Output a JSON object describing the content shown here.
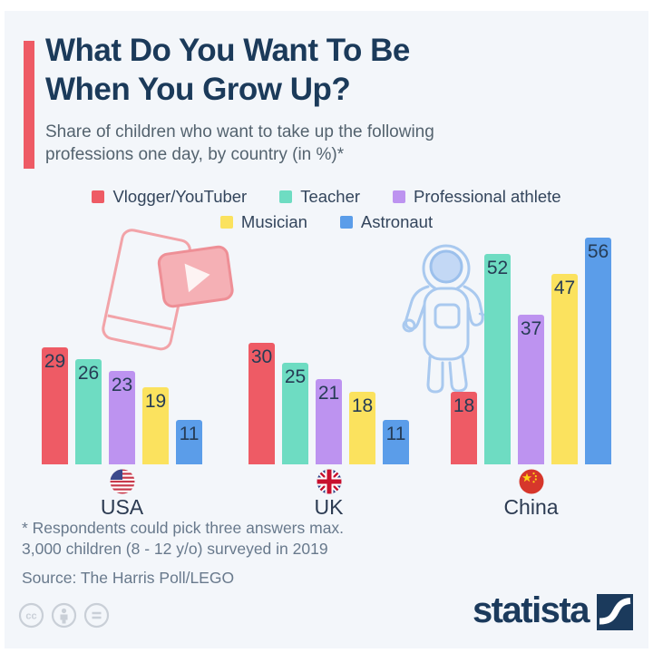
{
  "header": {
    "title_line1": "What Do You Want To Be",
    "title_line2": "When You Grow Up?",
    "subtitle": "Share of children who want to take up the following professions one day, by country (in %)*"
  },
  "chart_data": {
    "type": "bar",
    "categories": [
      "USA",
      "UK",
      "China"
    ],
    "series": [
      {
        "name": "Vlogger/YouTuber",
        "color": "#ee5b65",
        "values": [
          29,
          30,
          18
        ]
      },
      {
        "name": "Teacher",
        "color": "#6edcc2",
        "values": [
          26,
          25,
          52
        ]
      },
      {
        "name": "Professional athlete",
        "color": "#bd93f0",
        "values": [
          23,
          21,
          37
        ]
      },
      {
        "name": "Musician",
        "color": "#fbe25e",
        "values": [
          19,
          18,
          47
        ]
      },
      {
        "name": "Astronaut",
        "color": "#5b9de9",
        "values": [
          11,
          11,
          56
        ]
      }
    ],
    "unit": "%",
    "value_labels": true,
    "ylim": [
      0,
      60
    ],
    "grid": false,
    "legend_position": "top",
    "axis_labels_shown": false
  },
  "footnote": {
    "line1": "* Respondents could pick three answers max.",
    "line2": "3,000 children (8 - 12 y/o) surveyed in 2019",
    "source": "Source: The Harris Poll/LEGO"
  },
  "branding": {
    "logo_text": "statista"
  },
  "icons": {
    "youtube-phone-doodle": "smartphone with video play button",
    "astronaut-doodle": "astronaut outline",
    "usa-flag": "round US flag",
    "uk-flag": "round UK flag",
    "china-flag": "round China flag",
    "cc-icon": "cc",
    "attribution-person-icon": "person",
    "no-derivatives-icon": "=",
    "statista-mark": "white swoosh on navy square"
  },
  "colors": {
    "background": "#f3f6fa",
    "title": "#1b3a5a",
    "subtitle": "#54636f",
    "accent": "#ee5b65",
    "value_label": "#263c55",
    "footnote": "#68798c",
    "logo": "#1b3a5c"
  }
}
